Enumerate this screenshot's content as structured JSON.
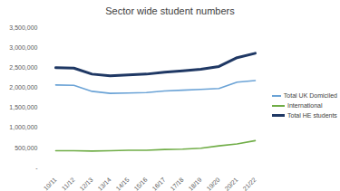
{
  "chart_data": {
    "type": "line",
    "title": "Sector wide student numbers",
    "categories": [
      "10/11",
      "11/12",
      "12/13",
      "13/14",
      "14/15",
      "15/16",
      "16/17",
      "17/18",
      "18/19",
      "19/20",
      "20/21",
      "21/22"
    ],
    "series": [
      {
        "name": "Total UK Domiciled",
        "color": "#6ba3d6",
        "values": [
          2070000,
          2060000,
          1910000,
          1860000,
          1870000,
          1880000,
          1920000,
          1940000,
          1960000,
          1980000,
          2140000,
          2180000
        ]
      },
      {
        "name": "International",
        "color": "#70ad47",
        "values": [
          430000,
          430000,
          420000,
          430000,
          440000,
          440000,
          460000,
          470000,
          490000,
          550000,
          600000,
          680000
        ]
      },
      {
        "name": "Total HE students",
        "color": "#1f3864",
        "values": [
          2500000,
          2490000,
          2340000,
          2300000,
          2320000,
          2340000,
          2390000,
          2420000,
          2460000,
          2530000,
          2750000,
          2860000
        ]
      }
    ],
    "ylim": [
      0,
      3500000
    ],
    "yticks": [
      {
        "value": 0,
        "label": "-"
      },
      {
        "value": 500000,
        "label": "500,000"
      },
      {
        "value": 1000000,
        "label": "1,000,000"
      },
      {
        "value": 1500000,
        "label": "1,500,000"
      },
      {
        "value": 2000000,
        "label": "2,000,000"
      },
      {
        "value": 2500000,
        "label": "2,500,000"
      },
      {
        "value": 3000000,
        "label": "3,000,000"
      },
      {
        "value": 3500000,
        "label": "3,500,000"
      }
    ],
    "grid": false,
    "legend": "right"
  }
}
